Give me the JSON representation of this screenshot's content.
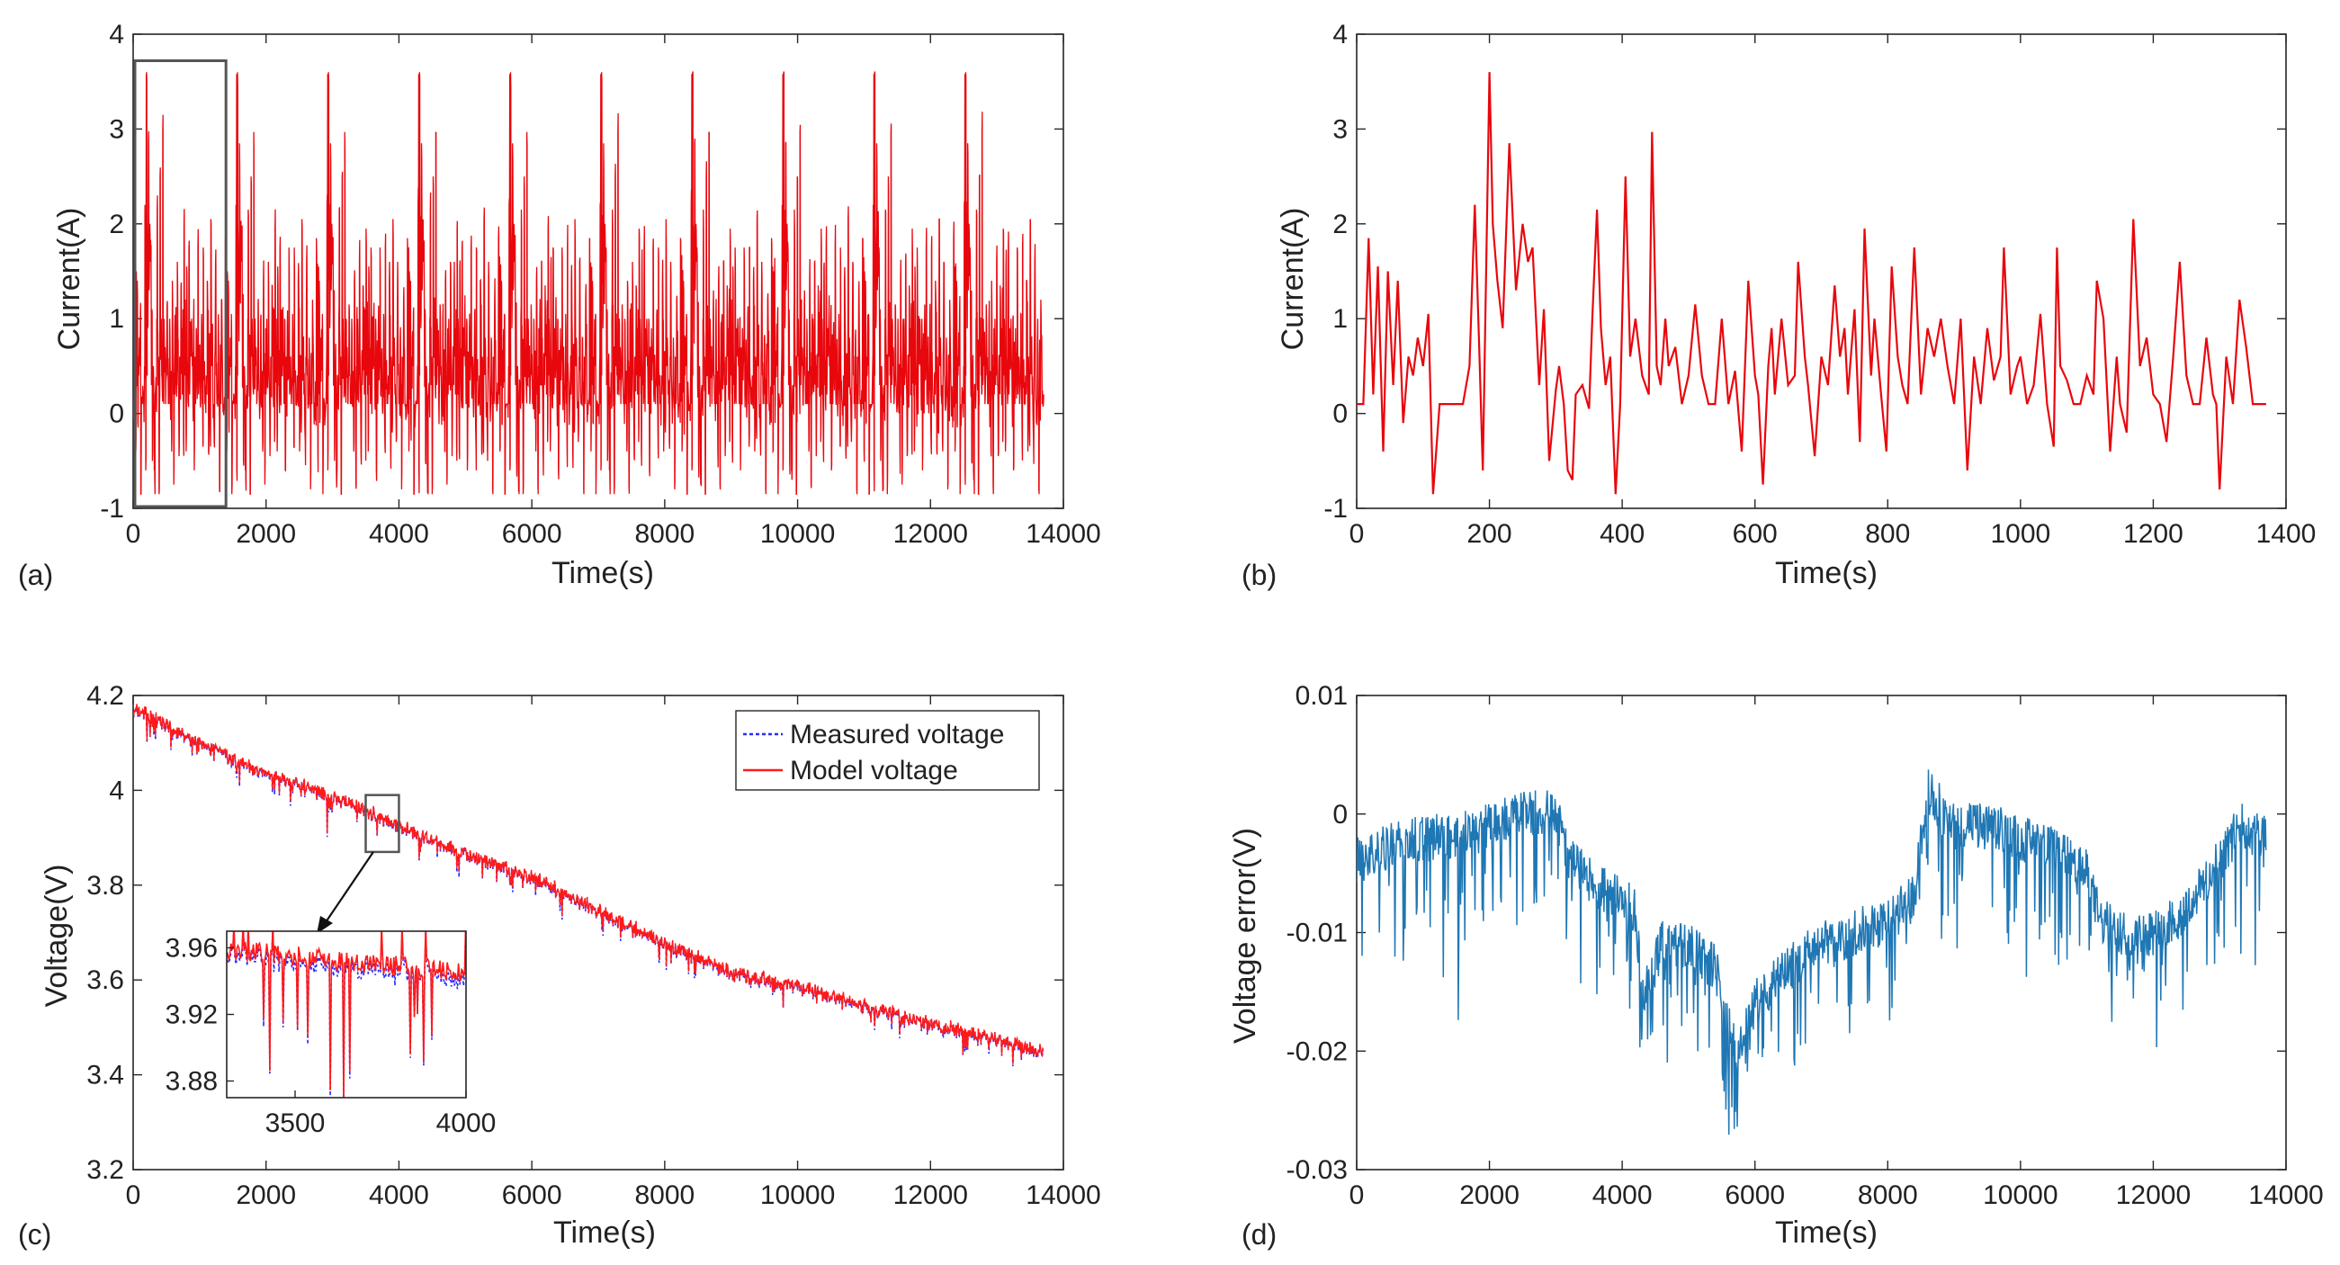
{
  "colors": {
    "current": "#e8070d",
    "measured": "#2a2aff",
    "model": "#ff1a1a",
    "error": "#1f77b4",
    "axis": "#262626",
    "box": "#555555"
  },
  "chart_data": [
    {
      "panel": "(a)",
      "type": "line",
      "title": "",
      "xlabel": "Time(s)",
      "ylabel": "Current(A)",
      "xlim": [
        0,
        14000
      ],
      "ylim": [
        -1,
        4
      ],
      "xticks": [
        "0",
        "2000",
        "4000",
        "6000",
        "8000",
        "10000",
        "12000",
        "14000"
      ],
      "yticks": [
        "-1",
        "0",
        "1",
        "2",
        "3",
        "4"
      ],
      "data_range_x": [
        0,
        13700
      ],
      "annotations": [
        "zoom box over 0-1370 s shown in panel (b)"
      ],
      "peaks": [
        {
          "x": 200,
          "y": 3.58
        },
        {
          "x": 1560,
          "y": 3.58
        },
        {
          "x": 2930,
          "y": 3.58
        },
        {
          "x": 4300,
          "y": 3.58
        },
        {
          "x": 5670,
          "y": 3.58
        },
        {
          "x": 7040,
          "y": 3.58
        },
        {
          "x": 8410,
          "y": 3.58
        },
        {
          "x": 9780,
          "y": 3.58
        },
        {
          "x": 11150,
          "y": 3.58
        },
        {
          "x": 12520,
          "y": 3.58
        }
      ],
      "series": [
        {
          "name": "Current",
          "profile": "repeated 0-1370 s profile, about 10 cycles"
        }
      ]
    },
    {
      "panel": "(b)",
      "type": "line",
      "title": "",
      "xlabel": "Time(s)",
      "ylabel": "Current(A)",
      "xlim": [
        0,
        1400
      ],
      "ylim": [
        -1,
        4
      ],
      "xticks": [
        "0",
        "200",
        "400",
        "600",
        "800",
        "1000",
        "1200",
        "1400"
      ],
      "yticks": [
        "-1",
        "0",
        "1",
        "2",
        "3",
        "4"
      ],
      "series": [
        {
          "name": "Current",
          "x": [
            0,
            10,
            18,
            25,
            32,
            40,
            47,
            55,
            62,
            70,
            78,
            85,
            92,
            100,
            108,
            115,
            125,
            140,
            160,
            170,
            178,
            185,
            190,
            195,
            200,
            205,
            212,
            220,
            230,
            240,
            250,
            258,
            265,
            275,
            282,
            290,
            300,
            305,
            312,
            318,
            325,
            330,
            340,
            350,
            355,
            362,
            368,
            375,
            382,
            390,
            397,
            405,
            412,
            420,
            430,
            440,
            445,
            452,
            458,
            465,
            470,
            480,
            490,
            500,
            510,
            520,
            530,
            540,
            550,
            560,
            570,
            580,
            590,
            600,
            605,
            612,
            620,
            625,
            630,
            640,
            650,
            660,
            665,
            675,
            680,
            690,
            700,
            710,
            720,
            728,
            735,
            740,
            750,
            758,
            765,
            775,
            780,
            790,
            798,
            806,
            815,
            822,
            830,
            840,
            850,
            860,
            870,
            880,
            890,
            900,
            910,
            920,
            930,
            940,
            950,
            960,
            970,
            975,
            985,
            995,
            1000,
            1010,
            1020,
            1030,
            1040,
            1050,
            1055,
            1060,
            1070,
            1080,
            1090,
            1100,
            1110,
            1115,
            1125,
            1135,
            1145,
            1150,
            1160,
            1170,
            1180,
            1190,
            1200,
            1210,
            1220,
            1230,
            1240,
            1250,
            1260,
            1270,
            1280,
            1290,
            1295,
            1300,
            1310,
            1320,
            1330,
            1340,
            1350,
            1360,
            1370
          ],
          "values": [
            0.1,
            0.1,
            1.85,
            0.2,
            1.55,
            -0.4,
            1.5,
            0.3,
            1.4,
            -0.1,
            0.6,
            0.4,
            0.8,
            0.5,
            1.05,
            -0.85,
            0.1,
            0.1,
            0.1,
            0.5,
            2.2,
            0.6,
            -0.6,
            1.5,
            3.6,
            2.0,
            1.4,
            0.9,
            2.85,
            1.3,
            2.0,
            1.6,
            1.75,
            0.3,
            1.1,
            -0.5,
            0.25,
            0.5,
            0.1,
            -0.6,
            -0.7,
            0.2,
            0.3,
            0.05,
            1.0,
            2.15,
            0.9,
            0.3,
            0.6,
            -0.85,
            0.1,
            2.5,
            0.6,
            1.0,
            0.4,
            0.2,
            2.97,
            0.5,
            0.3,
            1.0,
            0.5,
            0.7,
            0.1,
            0.4,
            1.15,
            0.4,
            0.1,
            0.1,
            1.0,
            0.1,
            0.45,
            -0.4,
            1.4,
            0.4,
            0.2,
            -0.75,
            0.5,
            0.9,
            0.2,
            1.0,
            0.3,
            0.4,
            1.6,
            0.6,
            0.3,
            -0.45,
            0.6,
            0.3,
            1.35,
            0.6,
            0.9,
            0.2,
            1.1,
            -0.3,
            1.95,
            0.4,
            1.0,
            0.2,
            -0.4,
            1.55,
            0.6,
            0.3,
            0.1,
            1.75,
            0.2,
            0.9,
            0.6,
            1.0,
            0.5,
            0.1,
            1.0,
            -0.6,
            0.6,
            0.1,
            0.9,
            0.35,
            0.6,
            1.75,
            0.2,
            0.5,
            0.6,
            0.1,
            0.3,
            1.05,
            0.1,
            -0.35,
            1.75,
            0.5,
            0.35,
            0.1,
            0.1,
            0.4,
            0.2,
            1.4,
            1.0,
            -0.4,
            0.6,
            0.1,
            -0.2,
            2.05,
            0.5,
            0.8,
            0.2,
            0.1,
            -0.3,
            0.6,
            1.6,
            0.4,
            0.1,
            0.1,
            0.8,
            0.2,
            0.1,
            -0.8,
            0.6,
            0.1,
            1.2,
            0.7,
            0.1,
            0.1,
            0.1
          ],
          "color": "#e8070d"
        }
      ]
    },
    {
      "panel": "(c)",
      "type": "line",
      "title": "",
      "xlabel": "Time(s)",
      "ylabel": "Voltage(V)",
      "xlim": [
        0,
        14000
      ],
      "ylim": [
        3.2,
        4.2
      ],
      "xticks": [
        "0",
        "2000",
        "4000",
        "6000",
        "8000",
        "10000",
        "12000",
        "14000"
      ],
      "yticks": [
        "3.2",
        "3.4",
        "3.6",
        "3.8",
        "4",
        "4.2"
      ],
      "legend": {
        "placement": "top-right",
        "entries": [
          "Measured voltage",
          "Model voltage"
        ]
      },
      "series": [
        {
          "name": "Measured voltage",
          "style": "dotted",
          "color": "#2a2aff",
          "x": [
            0,
            1000,
            2000,
            3000,
            4000,
            5000,
            6000,
            7000,
            8000,
            9000,
            10000,
            11000,
            12000,
            13000,
            13700
          ],
          "values": [
            4.18,
            4.1,
            4.04,
            3.99,
            3.93,
            3.87,
            3.82,
            3.75,
            3.68,
            3.62,
            3.59,
            3.55,
            3.51,
            3.48,
            3.45
          ]
        },
        {
          "name": "Model voltage",
          "style": "solid",
          "color": "#ff1a1a",
          "x": [
            0,
            1000,
            2000,
            3000,
            4000,
            5000,
            6000,
            7000,
            8000,
            9000,
            10000,
            11000,
            12000,
            13000,
            13700
          ],
          "values": [
            4.18,
            4.1,
            4.04,
            3.99,
            3.93,
            3.87,
            3.82,
            3.75,
            3.68,
            3.62,
            3.59,
            3.55,
            3.51,
            3.48,
            3.45
          ]
        }
      ],
      "zoom_box": {
        "xlim": [
          3500,
          4000
        ],
        "ylim": [
          3.87,
          3.99
        ]
      },
      "inset": {
        "xlim": [
          3300,
          4000
        ],
        "ylim": [
          3.87,
          3.97
        ],
        "xticks": [
          "3500",
          "4000"
        ],
        "yticks": [
          "3.88",
          "3.92",
          "3.96"
        ]
      }
    },
    {
      "panel": "(d)",
      "type": "line",
      "title": "",
      "xlabel": "Time(s)",
      "ylabel": "Voltage error(V)",
      "xlim": [
        0,
        14000
      ],
      "ylim": [
        -0.03,
        0.01
      ],
      "xticks": [
        "0",
        "2000",
        "4000",
        "6000",
        "8000",
        "10000",
        "12000",
        "14000"
      ],
      "yticks": [
        "-0.03",
        "-0.02",
        "-0.01",
        "0",
        "0.01"
      ],
      "series": [
        {
          "name": "Voltage error",
          "color": "#1f77b4",
          "x": [
            0,
            300,
            800,
            1500,
            2000,
            2500,
            3000,
            3200,
            3600,
            4200,
            4300,
            4600,
            5000,
            5400,
            5700,
            6000,
            6500,
            7000,
            7500,
            8000,
            8400,
            8600,
            9000,
            9500,
            10000,
            10500,
            11000,
            11200,
            11500,
            12000,
            12500,
            13000,
            13300,
            13700
          ],
          "values": [
            -0.004,
            -0.003,
            -0.002,
            -0.002,
            -0.001,
            0.0,
            0.0,
            -0.004,
            -0.006,
            -0.008,
            -0.016,
            -0.011,
            -0.011,
            -0.013,
            -0.02,
            -0.016,
            -0.013,
            -0.011,
            -0.01,
            -0.009,
            -0.007,
            0.002,
            -0.001,
            -0.001,
            -0.002,
            -0.003,
            -0.005,
            -0.009,
            -0.01,
            -0.01,
            -0.008,
            -0.004,
            -0.001,
            -0.002
          ]
        }
      ]
    }
  ]
}
